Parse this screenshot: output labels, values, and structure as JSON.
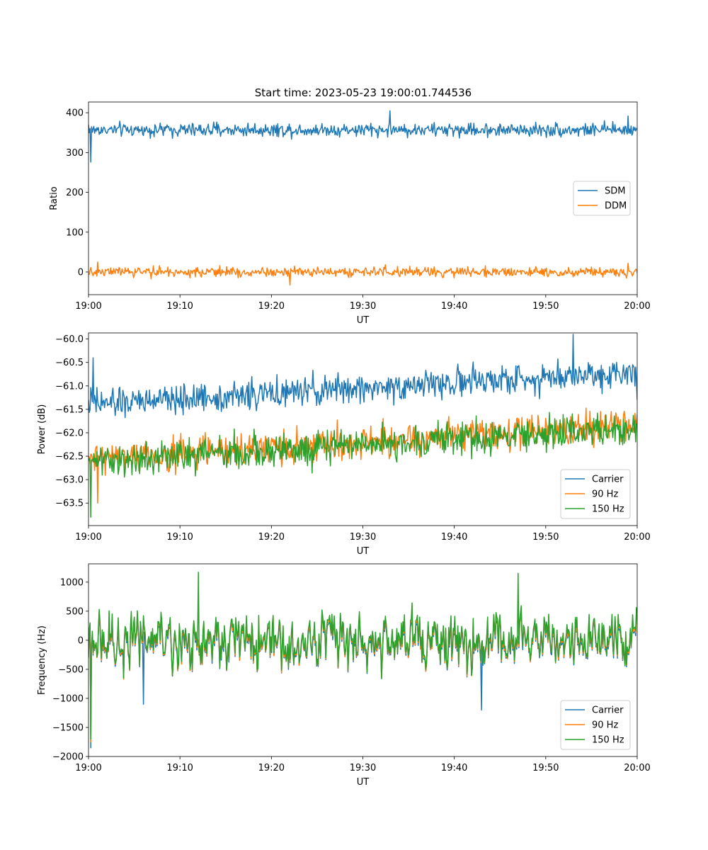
{
  "figure_title": "Start time: 2023-05-23 19:00:01.744536",
  "chart_data": [
    {
      "type": "line",
      "title": "Start time: 2023-05-23 19:00:01.744536",
      "xlabel": "UT",
      "ylabel": "Ratio",
      "xlim": [
        "19:00",
        "20:00"
      ],
      "xticks": [
        "19:00",
        "19:10",
        "19:20",
        "19:30",
        "19:40",
        "19:50",
        "20:00"
      ],
      "ylim": [
        -57,
        427
      ],
      "yticks": [
        0,
        100,
        200,
        300,
        400
      ],
      "ytick_labels": [
        "0",
        "100",
        "200",
        "300",
        "400"
      ],
      "legend": "center-right",
      "series": [
        {
          "name": "SDM",
          "color": "#1f77b4",
          "mean": 357,
          "spread": 12,
          "values": [
            {
              "t": "19:00",
              "v": 370
            },
            {
              "t": "19:00:15",
              "v": 276
            },
            {
              "t": "19:00:30",
              "v": 360
            },
            {
              "t": "19:33",
              "v": 405
            },
            {
              "t": "19:59",
              "v": 392
            },
            {
              "t": "20:00",
              "v": 362
            }
          ]
        },
        {
          "name": "DDM",
          "color": "#ff7f0e",
          "mean": 0,
          "spread": 9,
          "values": [
            {
              "t": "19:00",
              "v": -5
            },
            {
              "t": "19:01",
              "v": 25
            },
            {
              "t": "19:22",
              "v": -33
            },
            {
              "t": "19:59",
              "v": 22
            },
            {
              "t": "20:00",
              "v": -3
            }
          ]
        }
      ]
    },
    {
      "type": "line",
      "xlabel": "UT",
      "ylabel": "Power (dB)",
      "xlim": [
        "19:00",
        "20:00"
      ],
      "xticks": [
        "19:00",
        "19:10",
        "19:20",
        "19:30",
        "19:40",
        "19:50",
        "20:00"
      ],
      "ylim": [
        -63.98,
        -59.87
      ],
      "yticks": [
        -63.5,
        -63.0,
        -62.5,
        -62.0,
        -61.5,
        -61.0,
        -60.5,
        -60.0
      ],
      "ytick_labels": [
        "−63.5",
        "−63.0",
        "−62.5",
        "−62.0",
        "−61.5",
        "−61.0",
        "−60.5",
        "−60.0"
      ],
      "legend": "lower-right",
      "series": [
        {
          "name": "Carrier",
          "color": "#1f77b4",
          "start": -61.4,
          "end": -60.7,
          "spread": 0.22,
          "values": [
            {
              "t": "19:00",
              "v": -61.3
            },
            {
              "t": "19:00:30",
              "v": -60.4
            },
            {
              "t": "19:53",
              "v": -59.9
            },
            {
              "t": "20:00",
              "v": -61.3
            }
          ]
        },
        {
          "name": "90 Hz",
          "color": "#ff7f0e",
          "start": -62.6,
          "end": -61.8,
          "spread": 0.25,
          "values": [
            {
              "t": "19:00",
              "v": -62.5
            },
            {
              "t": "19:01",
              "v": -63.5
            },
            {
              "t": "20:00",
              "v": -61.6
            }
          ]
        },
        {
          "name": "150 Hz",
          "color": "#2ca02c",
          "start": -62.6,
          "end": -61.9,
          "spread": 0.25,
          "values": [
            {
              "t": "19:00",
              "v": -62.6
            },
            {
              "t": "19:00:15",
              "v": -63.8
            },
            {
              "t": "20:00",
              "v": -61.8
            }
          ]
        }
      ]
    },
    {
      "type": "line",
      "xlabel": "UT",
      "ylabel": "Frequency (Hz)",
      "xlim": [
        "19:00",
        "20:00"
      ],
      "xticks": [
        "19:00",
        "19:10",
        "19:20",
        "19:30",
        "19:40",
        "19:50",
        "20:00"
      ],
      "ylim": [
        -2000,
        1315
      ],
      "yticks": [
        -2000,
        -1500,
        -1000,
        -500,
        0,
        500,
        1000
      ],
      "ytick_labels": [
        "−2000",
        "−1500",
        "−1000",
        "−500",
        "0",
        "500",
        "1000"
      ],
      "legend": "lower-right",
      "series": [
        {
          "name": "Carrier",
          "color": "#1f77b4",
          "offset": -60,
          "spread": 280,
          "values": [
            {
              "t": "19:00",
              "v": -300
            },
            {
              "t": "19:00:15",
              "v": -1850
            },
            {
              "t": "19:06",
              "v": -1100
            },
            {
              "t": "19:43",
              "v": -1200
            }
          ]
        },
        {
          "name": "90 Hz",
          "color": "#ff7f0e",
          "offset": -30,
          "spread": 280,
          "values": [
            {
              "t": "19:00",
              "v": -280
            },
            {
              "t": "19:00:15",
              "v": -1750
            }
          ]
        },
        {
          "name": "150 Hz",
          "color": "#2ca02c",
          "offset": 0,
          "spread": 280,
          "values": [
            {
              "t": "19:00",
              "v": -250
            },
            {
              "t": "19:00:15",
              "v": -1700
            },
            {
              "t": "19:12",
              "v": 1170
            },
            {
              "t": "19:47",
              "v": 1150
            }
          ]
        }
      ]
    }
  ]
}
